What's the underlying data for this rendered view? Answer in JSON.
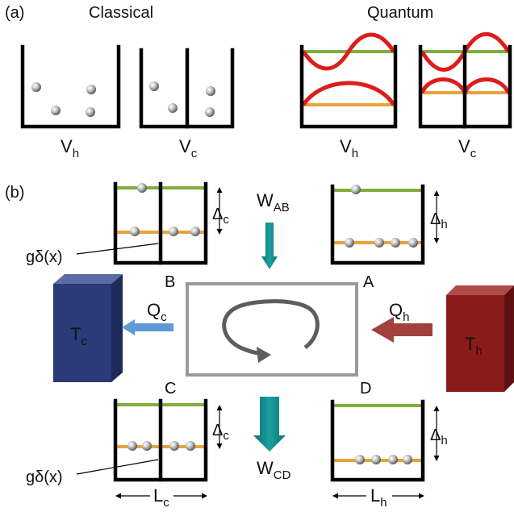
{
  "panel_a": {
    "tag": "(a)",
    "classical_title": "Classical",
    "quantum_title": "Quantum",
    "box_labels": [
      {
        "main": "V",
        "sub": "h"
      },
      {
        "main": "V",
        "sub": "c"
      },
      {
        "main": "V",
        "sub": "h"
      },
      {
        "main": "V",
        "sub": "c"
      }
    ]
  },
  "panel_b": {
    "tag": "(b)",
    "corners": {
      "A": "A",
      "B": "B",
      "C": "C",
      "D": "D"
    },
    "work_ab": {
      "main": "W",
      "sub": "AB"
    },
    "work_cd": {
      "main": "W",
      "sub": "CD"
    },
    "heat_c": {
      "main": "Q",
      "sub": "c"
    },
    "heat_h": {
      "main": "Q",
      "sub": "h"
    },
    "temp_c": {
      "main": "T",
      "sub": "c"
    },
    "temp_h": {
      "main": "T",
      "sub": "h"
    },
    "delta_c": {
      "main": "Δ",
      "sub": "c"
    },
    "delta_h": {
      "main": "Δ",
      "sub": "h"
    },
    "barrier_label": "gδ(x)",
    "length_c": {
      "main": "L",
      "sub": "c"
    },
    "length_h": {
      "main": "L",
      "sub": "h"
    }
  },
  "colors": {
    "cold_reservoir": "#2b3a78",
    "hot_reservoir": "#8b1a1a",
    "heat_cold_arrow": "#5f9ad6",
    "heat_hot_arrow": "#a3403c",
    "work_arrow": "#138a8a",
    "cycle_box": "#9a9a9a",
    "ground_level": "#e9a23a",
    "excited_level": "#7fae3c",
    "wavefunction": "#dd1c1c"
  }
}
